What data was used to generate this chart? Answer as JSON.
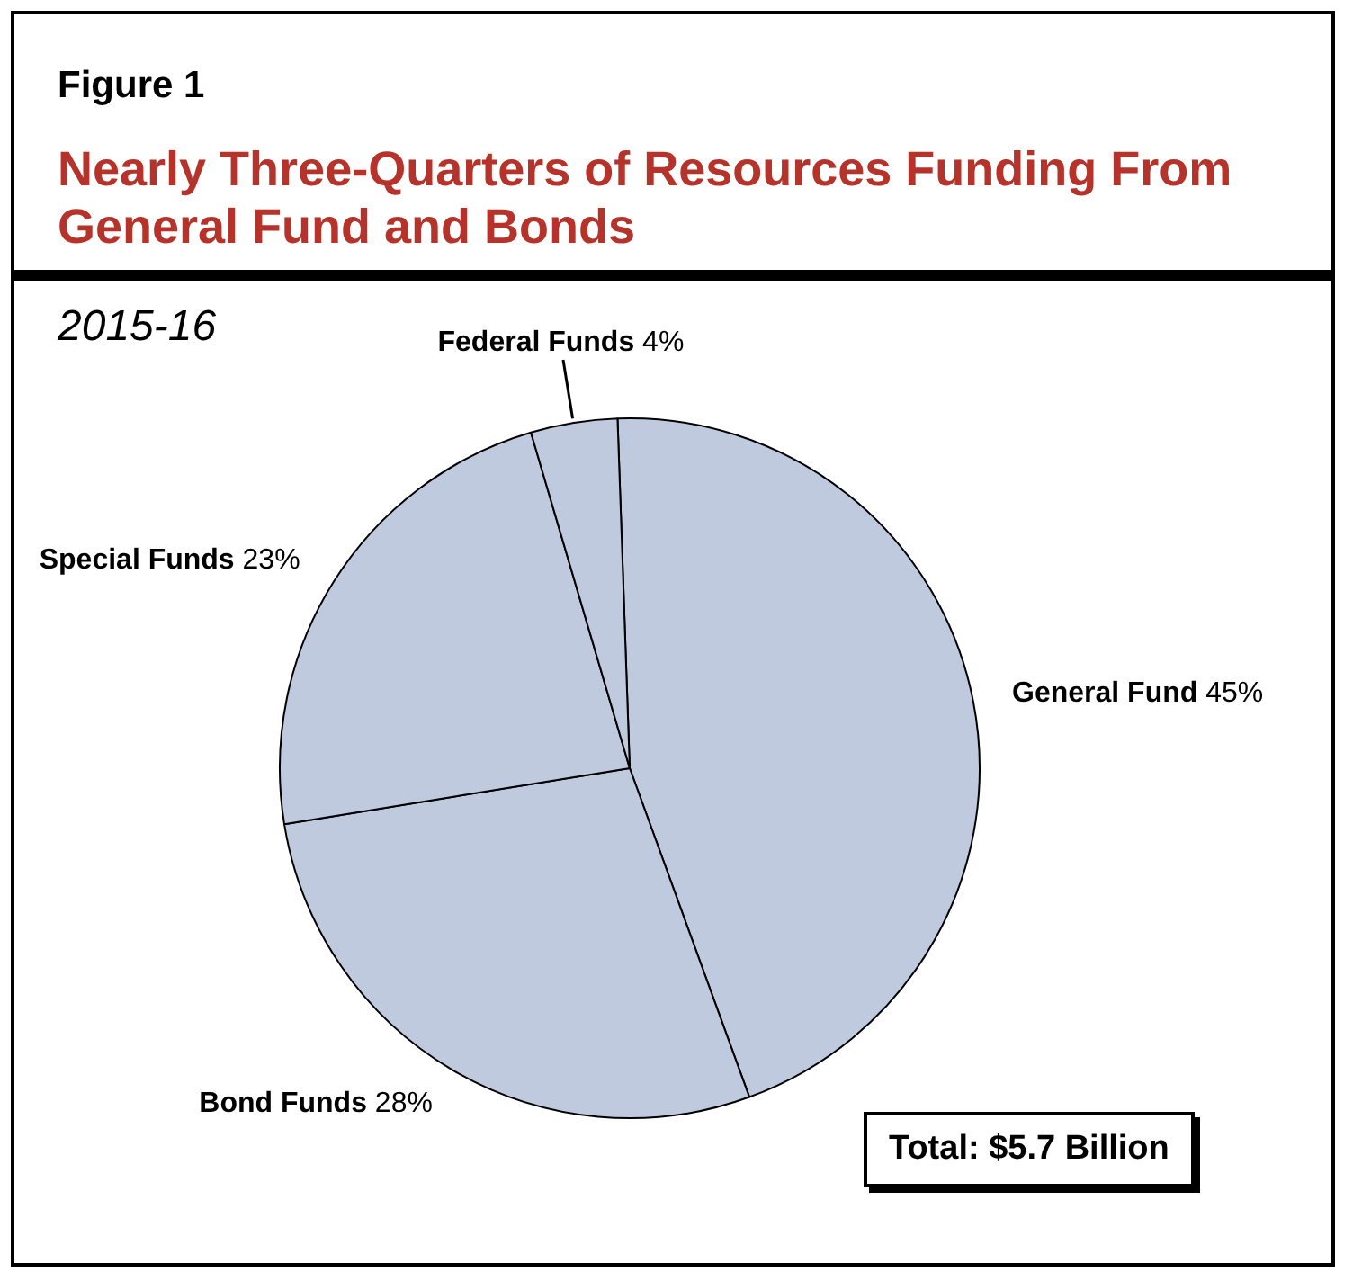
{
  "chart_data": {
    "type": "pie",
    "title": "Nearly Three-Quarters of Resources Funding From General Fund and Bonds",
    "subtitle": "2015-16",
    "categories": [
      "General Fund",
      "Bond Funds",
      "Special Funds",
      "Federal Funds"
    ],
    "values": [
      45,
      28,
      23,
      4
    ],
    "value_labels": [
      "45%",
      "28%",
      "23%",
      "4%"
    ],
    "colors": [
      "#bfcadf",
      "#bfcadf",
      "#bfcadf",
      "#bfcadf"
    ],
    "legend": false,
    "annotations": [
      "Figure 1",
      "Total: $5.7 Billion"
    ]
  }
}
